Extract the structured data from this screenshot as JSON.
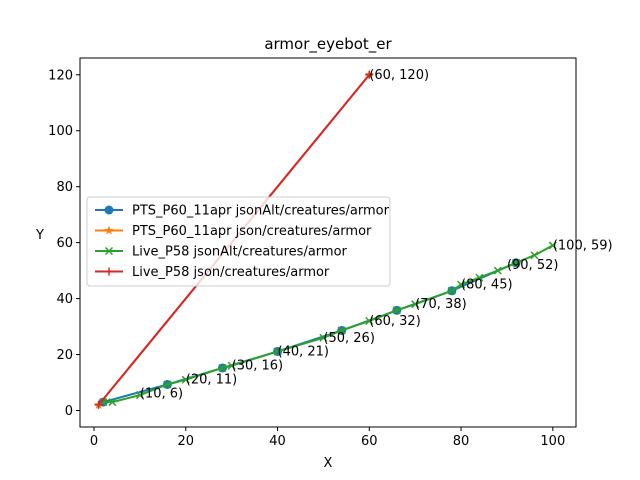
{
  "chart_data": {
    "type": "line",
    "title": "armor_eyebot_er",
    "xlabel": "X",
    "ylabel": "Y",
    "xlim": [
      -3.05,
      105.05
    ],
    "ylim": [
      -5.9,
      126.0
    ],
    "xticks": [
      0,
      20,
      40,
      60,
      80,
      100
    ],
    "yticks": [
      0,
      20,
      40,
      60,
      80,
      100,
      120
    ],
    "grid": false,
    "legend_position": "center-left",
    "series": [
      {
        "name": "PTS_P60_11apr jsonAlt/creatures/armor",
        "color": "#1f77b4",
        "marker": "circle",
        "x": [
          2,
          16,
          28,
          40,
          54,
          66,
          78,
          92
        ],
        "y": [
          3,
          9.3,
          15.2,
          21.1,
          28.6,
          35.8,
          42.8,
          52.8
        ]
      },
      {
        "name": "PTS_P60_11apr json/creatures/armor",
        "color": "#ff7f0e",
        "marker": "star",
        "x": [
          1,
          60
        ],
        "y": [
          2,
          120
        ]
      },
      {
        "name": "Live_P58 jsonAlt/creatures/armor",
        "color": "#2ca02c",
        "marker": "x",
        "x": [
          2,
          4,
          10,
          16,
          20,
          28,
          30,
          40,
          50,
          54,
          60,
          66,
          70,
          78,
          80,
          84,
          88,
          92,
          96,
          100
        ],
        "y": [
          3,
          3,
          5.5,
          9.3,
          11,
          15.2,
          16,
          21.1,
          26,
          28.6,
          32,
          35.8,
          38,
          42.8,
          45,
          47.5,
          50,
          52.8,
          55.5,
          59
        ]
      },
      {
        "name": "Live_P58 json/creatures/armor",
        "color": "#d62728",
        "marker": "plus",
        "x": [
          1,
          60
        ],
        "y": [
          2,
          120
        ]
      }
    ],
    "annotations": [
      {
        "text": "(60, 120)",
        "x": 60,
        "y": 120
      },
      {
        "text": "(10, 6)",
        "x": 10,
        "y": 6
      },
      {
        "text": "(20, 11)",
        "x": 20,
        "y": 11
      },
      {
        "text": "(30, 16)",
        "x": 30,
        "y": 16
      },
      {
        "text": "(40, 21)",
        "x": 40,
        "y": 21
      },
      {
        "text": "(50, 26)",
        "x": 50,
        "y": 26
      },
      {
        "text": "(60, 32)",
        "x": 60,
        "y": 32
      },
      {
        "text": "(70, 38)",
        "x": 70,
        "y": 38
      },
      {
        "text": "(80, 45)",
        "x": 80,
        "y": 45
      },
      {
        "text": "(90, 52)",
        "x": 90,
        "y": 52
      },
      {
        "text": "(100, 59)",
        "x": 100,
        "y": 59
      }
    ]
  }
}
